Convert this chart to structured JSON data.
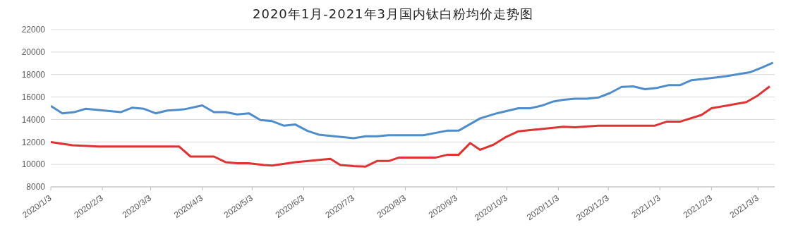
{
  "chart_data": {
    "type": "line",
    "title": "2020年1月-2021年3月国内钛白粉均价走势图",
    "xlim": [
      "2020-01-03",
      "2021-03-13"
    ],
    "xticks": [
      {
        "value": "2020-01-03",
        "label": "2020/1/3"
      },
      {
        "value": "2020-02-03",
        "label": "2020/2/3"
      },
      {
        "value": "2020-03-03",
        "label": "2020/3/3"
      },
      {
        "value": "2020-04-03",
        "label": "2020/4/3"
      },
      {
        "value": "2020-05-03",
        "label": "2020/5/3"
      },
      {
        "value": "2020-06-03",
        "label": "2020/6/3"
      },
      {
        "value": "2020-07-03",
        "label": "2020/7/3"
      },
      {
        "value": "2020-08-03",
        "label": "2020/8/3"
      },
      {
        "value": "2020-09-03",
        "label": "2020/9/3"
      },
      {
        "value": "2020-10-03",
        "label": "2020/10/3"
      },
      {
        "value": "2020-11-03",
        "label": "2020/11/3"
      },
      {
        "value": "2020-12-03",
        "label": "2020/12/3"
      },
      {
        "value": "2021-01-03",
        "label": "2021/1/3"
      },
      {
        "value": "2021-02-03",
        "label": "2021/2/3"
      },
      {
        "value": "2021-03-03",
        "label": "2021/3/3"
      }
    ],
    "ylim": [
      8000,
      22000
    ],
    "yticks": [
      8000,
      10000,
      12000,
      14000,
      16000,
      18000,
      20000,
      22000
    ],
    "grid": "y",
    "marker": "none",
    "line_style": "solid",
    "series": [
      {
        "color": "#4f8ccb",
        "x": [
          "2020-01-03",
          "2020-01-10",
          "2020-01-17",
          "2020-01-24",
          "2020-02-14",
          "2020-02-21",
          "2020-02-28",
          "2020-03-06",
          "2020-03-13",
          "2020-03-23",
          "2020-04-03",
          "2020-04-10",
          "2020-04-17",
          "2020-04-24",
          "2020-05-01",
          "2020-05-08",
          "2020-05-15",
          "2020-05-22",
          "2020-05-29",
          "2020-06-05",
          "2020-06-12",
          "2020-07-03",
          "2020-07-10",
          "2020-07-17",
          "2020-07-24",
          "2020-08-14",
          "2020-08-28",
          "2020-09-04",
          "2020-09-17",
          "2020-09-27",
          "2020-10-10",
          "2020-10-17",
          "2020-10-24",
          "2020-10-31",
          "2020-11-06",
          "2020-11-13",
          "2020-11-20",
          "2020-11-27",
          "2020-12-04",
          "2020-12-11",
          "2020-12-18",
          "2020-12-25",
          "2021-01-01",
          "2021-01-08",
          "2021-01-15",
          "2021-01-22",
          "2021-01-29",
          "2021-02-12",
          "2021-02-26",
          "2021-03-05",
          "2021-03-12"
        ],
        "values": [
          15200,
          14550,
          14650,
          14950,
          14650,
          15050,
          14950,
          14550,
          14800,
          14900,
          15250,
          14650,
          14650,
          14450,
          14550,
          13950,
          13850,
          13450,
          13550,
          13000,
          12650,
          12330,
          12500,
          12500,
          12600,
          12600,
          13000,
          13000,
          14100,
          14550,
          15000,
          15000,
          15230,
          15600,
          15750,
          15850,
          15850,
          15950,
          16350,
          16900,
          16950,
          16700,
          16800,
          17050,
          17050,
          17500,
          17600,
          17850,
          18200,
          18600,
          19050
        ]
      },
      {
        "color": "#e03232",
        "x": [
          "2020-01-03",
          "2020-01-16",
          "2020-02-01",
          "2020-02-16",
          "2020-03-20",
          "2020-03-27",
          "2020-04-10",
          "2020-04-17",
          "2020-04-24",
          "2020-05-01",
          "2020-05-10",
          "2020-05-15",
          "2020-05-29",
          "2020-06-19",
          "2020-06-25",
          "2020-07-03",
          "2020-07-10",
          "2020-07-17",
          "2020-07-24",
          "2020-07-30",
          "2020-08-21",
          "2020-08-28",
          "2020-09-04",
          "2020-09-11",
          "2020-09-17",
          "2020-09-25",
          "2020-10-02",
          "2020-10-10",
          "2020-10-17",
          "2020-11-06",
          "2020-11-13",
          "2020-11-27",
          "2020-12-31",
          "2021-01-07",
          "2021-01-15",
          "2021-01-28",
          "2021-02-03",
          "2021-02-24",
          "2021-03-03",
          "2021-03-10"
        ],
        "values": [
          11980,
          11700,
          11600,
          11600,
          11600,
          10700,
          10700,
          10200,
          10100,
          10100,
          9950,
          9900,
          10200,
          10500,
          9950,
          9850,
          9800,
          10300,
          10300,
          10600,
          10600,
          10850,
          10850,
          11900,
          11300,
          11750,
          12400,
          12950,
          13050,
          13350,
          13300,
          13450,
          13450,
          13800,
          13800,
          14400,
          15000,
          15550,
          16150,
          16950
        ]
      }
    ]
  }
}
